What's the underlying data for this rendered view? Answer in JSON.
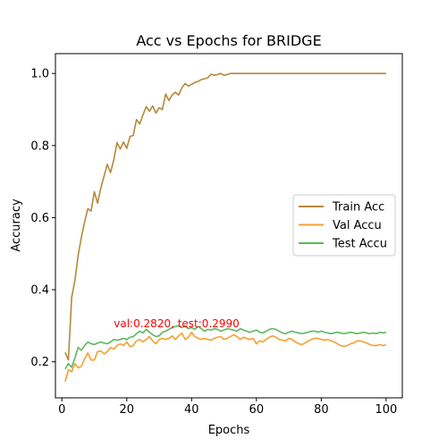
{
  "chart_data": {
    "type": "line",
    "title": "Acc vs Epochs for BRIDGE",
    "xlabel": "Epochs",
    "ylabel": "Accuracy",
    "xlim": [
      -2,
      105
    ],
    "ylim": [
      0.1,
      1.055
    ],
    "xticks": [
      0,
      20,
      40,
      60,
      80,
      100
    ],
    "yticks": [
      0.2,
      0.4,
      0.6,
      0.8,
      1.0
    ],
    "xtick_labels": [
      "0",
      "20",
      "40",
      "60",
      "80",
      "100"
    ],
    "ytick_labels": [
      "0.2",
      "0.4",
      "0.6",
      "0.8",
      "1.0"
    ],
    "grid": false,
    "legend_position": "center-right",
    "annotation": {
      "text": "val:0.2820, test:0.2990",
      "x": 16,
      "y": 0.296,
      "color": "#ff0000"
    },
    "x_start": 1,
    "series": [
      {
        "name": "Train Acc",
        "color": "#b5893a",
        "values": [
          0.226,
          0.205,
          0.378,
          0.425,
          0.495,
          0.545,
          0.588,
          0.625,
          0.618,
          0.672,
          0.64,
          0.682,
          0.715,
          0.748,
          0.725,
          0.76,
          0.808,
          0.79,
          0.81,
          0.792,
          0.825,
          0.828,
          0.872,
          0.86,
          0.885,
          0.908,
          0.895,
          0.91,
          0.89,
          0.905,
          0.9,
          0.943,
          0.925,
          0.94,
          0.948,
          0.94,
          0.96,
          0.972,
          0.965,
          0.97,
          0.975,
          0.978,
          0.983,
          0.985,
          0.988,
          0.998,
          0.995,
          0.997,
          1.0,
          0.995,
          0.997,
          1.0,
          1.0,
          1.0,
          1.0,
          1.0,
          1.0,
          1.0,
          1.0,
          1.0,
          1.0,
          1.0,
          1.0,
          1.0,
          1.0,
          1.0,
          1.0,
          1.0,
          1.0,
          1.0,
          1.0,
          1.0,
          1.0,
          1.0,
          1.0,
          1.0,
          1.0,
          1.0,
          1.0,
          1.0,
          1.0,
          1.0,
          1.0,
          1.0,
          1.0,
          1.0,
          1.0,
          1.0,
          1.0,
          1.0,
          1.0,
          1.0,
          1.0,
          1.0,
          1.0,
          1.0,
          1.0,
          1.0,
          1.0,
          1.0
        ]
      },
      {
        "name": "Val Accu",
        "color": "#f5a030",
        "values": [
          0.145,
          0.178,
          0.172,
          0.195,
          0.183,
          0.188,
          0.208,
          0.225,
          0.205,
          0.205,
          0.228,
          0.23,
          0.222,
          0.228,
          0.24,
          0.235,
          0.245,
          0.25,
          0.245,
          0.255,
          0.242,
          0.245,
          0.258,
          0.262,
          0.255,
          0.262,
          0.27,
          0.258,
          0.25,
          0.262,
          0.265,
          0.262,
          0.265,
          0.272,
          0.262,
          0.272,
          0.28,
          0.262,
          0.268,
          0.282,
          0.27,
          0.265,
          0.262,
          0.265,
          0.262,
          0.26,
          0.265,
          0.268,
          0.27,
          0.262,
          0.265,
          0.27,
          0.275,
          0.27,
          0.262,
          0.268,
          0.265,
          0.262,
          0.265,
          0.25,
          0.258,
          0.255,
          0.262,
          0.268,
          0.272,
          0.268,
          0.262,
          0.26,
          0.258,
          0.265,
          0.262,
          0.255,
          0.25,
          0.248,
          0.252,
          0.258,
          0.262,
          0.265,
          0.265,
          0.262,
          0.26,
          0.262,
          0.258,
          0.255,
          0.25,
          0.245,
          0.243,
          0.245,
          0.25,
          0.252,
          0.258,
          0.258,
          0.255,
          0.252,
          0.248,
          0.245,
          0.245,
          0.248,
          0.245,
          0.247
        ]
      },
      {
        "name": "Test Accu",
        "color": "#5cb85c",
        "values": [
          0.18,
          0.195,
          0.185,
          0.21,
          0.24,
          0.232,
          0.245,
          0.255,
          0.25,
          0.248,
          0.252,
          0.255,
          0.252,
          0.25,
          0.255,
          0.262,
          0.26,
          0.262,
          0.265,
          0.262,
          0.268,
          0.27,
          0.278,
          0.285,
          0.28,
          0.29,
          0.282,
          0.275,
          0.27,
          0.272,
          0.282,
          0.285,
          0.29,
          0.295,
          0.298,
          0.3,
          0.295,
          0.3,
          0.292,
          0.295,
          0.29,
          0.298,
          0.292,
          0.285,
          0.29,
          0.288,
          0.292,
          0.29,
          0.285,
          0.288,
          0.292,
          0.29,
          0.288,
          0.285,
          0.292,
          0.288,
          0.285,
          0.282,
          0.285,
          0.288,
          0.282,
          0.28,
          0.285,
          0.29,
          0.292,
          0.29,
          0.285,
          0.28,
          0.278,
          0.282,
          0.285,
          0.282,
          0.28,
          0.278,
          0.28,
          0.282,
          0.285,
          0.285,
          0.282,
          0.285,
          0.282,
          0.28,
          0.278,
          0.28,
          0.282,
          0.28,
          0.278,
          0.28,
          0.282,
          0.28,
          0.278,
          0.28,
          0.282,
          0.28,
          0.278,
          0.28,
          0.278,
          0.282,
          0.28,
          0.282
        ]
      }
    ]
  }
}
